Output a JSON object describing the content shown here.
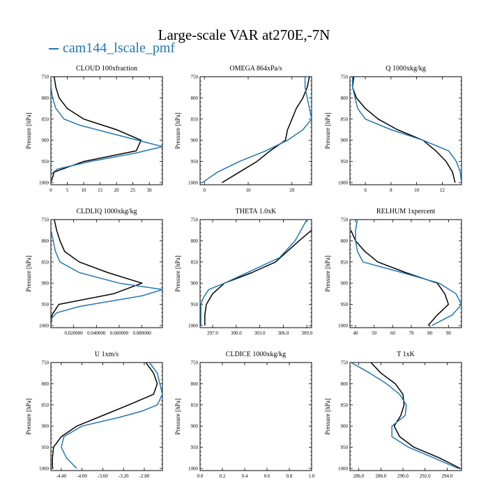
{
  "title": "Large-scale VAR at270E,-7N",
  "legend": {
    "label": "cam144_lscale_pmf",
    "color": "#1f77b4"
  },
  "chart_data": [
    {
      "type": "line",
      "title": "CLOUD  100xfraction",
      "ylabel": "Pressure [hPa]",
      "xlim": [
        0,
        34
      ],
      "ylim": [
        1005,
        750
      ],
      "xticks": [
        0,
        5,
        10,
        15,
        20,
        25,
        30
      ],
      "xticklabels": [
        "0",
        "5",
        "10",
        "15",
        "20",
        "25",
        "30"
      ],
      "yticks": [
        750,
        800,
        850,
        900,
        950,
        1000
      ],
      "yticklabels": [
        "750",
        "800",
        "850",
        "900",
        "950",
        "1000"
      ],
      "series": [
        {
          "color": "#000000",
          "points": [
            [
              1.0,
              750
            ],
            [
              1.5,
              775
            ],
            [
              2.5,
              800
            ],
            [
              5,
              825
            ],
            [
              10,
              850
            ],
            [
              20,
              875
            ],
            [
              27.5,
              900
            ],
            [
              26,
              925
            ],
            [
              10,
              950
            ],
            [
              1,
              975
            ],
            [
              0,
              1000
            ]
          ]
        },
        {
          "color": "#1f77b4",
          "points": [
            [
              0,
              750
            ],
            [
              0,
              775
            ],
            [
              0.5,
              800
            ],
            [
              1.5,
              825
            ],
            [
              4,
              850
            ],
            [
              9,
              865
            ],
            [
              19,
              885
            ],
            [
              34,
              915
            ],
            [
              26,
              930
            ],
            [
              12,
              950
            ],
            [
              2,
              968
            ],
            [
              0,
              980
            ],
            [
              0,
              1000
            ]
          ]
        }
      ]
    },
    {
      "type": "line",
      "title": "OMEGA  864xPa/s",
      "ylabel": "Pressure [hPa]",
      "xlim": [
        -1,
        24.5
      ],
      "ylim": [
        1005,
        750
      ],
      "xticks": [
        0,
        10,
        20
      ],
      "xticklabels": [
        "0",
        "10",
        "20"
      ],
      "yticks": [
        750,
        800,
        850,
        900,
        950,
        1000
      ],
      "yticklabels": [
        "750",
        "800",
        "850",
        "900",
        "950",
        "1000"
      ],
      "series": [
        {
          "color": "#000000",
          "points": [
            [
              24,
              750
            ],
            [
              23.5,
              775
            ],
            [
              22.5,
              800
            ],
            [
              21,
              825
            ],
            [
              20,
              850
            ],
            [
              19,
              875
            ],
            [
              18.5,
              900
            ],
            [
              15,
              925
            ],
            [
              12,
              950
            ],
            [
              8,
              975
            ],
            [
              4,
              1000
            ]
          ]
        },
        {
          "color": "#1f77b4",
          "points": [
            [
              23,
              750
            ],
            [
              23,
              775
            ],
            [
              23.5,
              800
            ],
            [
              24,
              825
            ],
            [
              24.5,
              850
            ],
            [
              22.5,
              875
            ],
            [
              19,
              900
            ],
            [
              14,
              925
            ],
            [
              8,
              950
            ],
            [
              3,
              975
            ],
            [
              -0.5,
              1000
            ]
          ]
        }
      ]
    },
    {
      "type": "line",
      "title": "Q  1000xkg/kg",
      "ylabel": "Pressure [hPa]",
      "xlim": [
        4.8,
        13.5
      ],
      "ylim": [
        1005,
        750
      ],
      "xticks": [
        6,
        8,
        10,
        12
      ],
      "xticklabels": [
        "6",
        "8",
        "10",
        "12"
      ],
      "yticks": [
        750,
        800,
        850,
        900,
        950,
        1000
      ],
      "yticklabels": [
        "750",
        "800",
        "850",
        "900",
        "950",
        "1000"
      ],
      "series": [
        {
          "color": "#000000",
          "points": [
            [
              5.1,
              750
            ],
            [
              5.0,
              775
            ],
            [
              5.3,
              800
            ],
            [
              6,
              825
            ],
            [
              7,
              850
            ],
            [
              8.5,
              875
            ],
            [
              10.5,
              900
            ],
            [
              11.5,
              925
            ],
            [
              12.3,
              950
            ],
            [
              12.8,
              975
            ],
            [
              13.0,
              1000
            ]
          ]
        },
        {
          "color": "#1f77b4",
          "points": [
            [
              5.0,
              750
            ],
            [
              5.0,
              775
            ],
            [
              5.2,
              800
            ],
            [
              5.4,
              825
            ],
            [
              6,
              850
            ],
            [
              8,
              875
            ],
            [
              10.5,
              900
            ],
            [
              12.5,
              925
            ],
            [
              13.1,
              950
            ],
            [
              13.4,
              975
            ],
            [
              13.5,
              1000
            ]
          ]
        }
      ]
    },
    {
      "type": "line",
      "title": "CLDLIQ  1000xkg/kg",
      "ylabel": "Pressure [hPa]",
      "xlim": [
        0,
        0.098
      ],
      "ylim": [
        1005,
        750
      ],
      "xticks": [
        0.02,
        0.04,
        0.06,
        0.08
      ],
      "xticklabels": [
        "0.020000",
        "0.040000",
        "0.060000",
        "0.080000"
      ],
      "yticks": [
        750,
        800,
        850,
        900,
        950,
        1000
      ],
      "yticklabels": [
        "750",
        "800",
        "850",
        "900",
        "950",
        "1000"
      ],
      "series": [
        {
          "color": "#000000",
          "points": [
            [
              0.003,
              750
            ],
            [
              0.005,
              775
            ],
            [
              0.008,
              800
            ],
            [
              0.012,
              825
            ],
            [
              0.025,
              850
            ],
            [
              0.05,
              875
            ],
            [
              0.08,
              900
            ],
            [
              0.055,
              925
            ],
            [
              0.007,
              950
            ],
            [
              0.001,
              975
            ],
            [
              0,
              1000
            ]
          ]
        },
        {
          "color": "#1f77b4",
          "points": [
            [
              0,
              750
            ],
            [
              0,
              775
            ],
            [
              0.002,
              800
            ],
            [
              0.004,
              825
            ],
            [
              0.008,
              850
            ],
            [
              0.025,
              875
            ],
            [
              0.06,
              900
            ],
            [
              0.098,
              915
            ],
            [
              0.08,
              930
            ],
            [
              0.025,
              955
            ],
            [
              0.005,
              970
            ],
            [
              0,
              985
            ],
            [
              0,
              1000
            ]
          ]
        }
      ]
    },
    {
      "type": "line",
      "title": "THETA  1.0xK",
      "ylabel": "Pressure [hPa]",
      "xlim": [
        295.4,
        309.6
      ],
      "ylim": [
        1005,
        750
      ],
      "xticks": [
        297,
        300,
        303,
        306,
        309
      ],
      "xticklabels": [
        "297.0",
        "300.0",
        "303.0",
        "306.0",
        "309.0"
      ],
      "yticks": [
        750,
        800,
        850,
        900,
        950,
        1000
      ],
      "yticklabels": [
        "750",
        "800",
        "850",
        "900",
        "950",
        "1000"
      ],
      "series": [
        {
          "color": "#000000",
          "points": [
            [
              309.6,
              775
            ],
            [
              308,
              800
            ],
            [
              306.5,
              825
            ],
            [
              305,
              850
            ],
            [
              302,
              875
            ],
            [
              298.5,
              900
            ],
            [
              297,
              925
            ],
            [
              296.2,
              950
            ],
            [
              296,
              975
            ],
            [
              296,
              1000
            ]
          ]
        },
        {
          "color": "#1f77b4",
          "points": [
            [
              309,
              750
            ],
            [
              307.5,
              800
            ],
            [
              305.5,
              840
            ],
            [
              302,
              870
            ],
            [
              298.5,
              900
            ],
            [
              296.5,
              915
            ],
            [
              295.8,
              935
            ],
            [
              295.5,
              950
            ],
            [
              295.5,
              1000
            ]
          ]
        }
      ]
    },
    {
      "type": "line",
      "title": "RELHUM  1xpercent",
      "ylabel": "Pressure [hPa]",
      "xlim": [
        37,
        97
      ],
      "ylim": [
        1005,
        750
      ],
      "xticks": [
        40,
        50,
        60,
        70,
        80,
        90
      ],
      "xticklabels": [
        "40",
        "50",
        "60",
        "70",
        "80",
        "90"
      ],
      "yticks": [
        750,
        800,
        850,
        900,
        950,
        1000
      ],
      "yticklabels": [
        "750",
        "800",
        "850",
        "900",
        "950",
        "1000"
      ],
      "series": [
        {
          "color": "#000000",
          "points": [
            [
              37.5,
              775
            ],
            [
              40,
              800
            ],
            [
              45,
              825
            ],
            [
              52,
              850
            ],
            [
              67,
              875
            ],
            [
              84,
              900
            ],
            [
              88,
              925
            ],
            [
              90,
              950
            ],
            [
              84,
              975
            ],
            [
              79,
              1000
            ]
          ]
        },
        {
          "color": "#1f77b4",
          "points": [
            [
              41,
              750
            ],
            [
              40,
              775
            ],
            [
              40,
              800
            ],
            [
              41,
              825
            ],
            [
              44,
              850
            ],
            [
              65,
              875
            ],
            [
              85,
              900
            ],
            [
              94,
              925
            ],
            [
              97,
              950
            ],
            [
              92,
              975
            ],
            [
              81,
              1000
            ]
          ]
        }
      ]
    },
    {
      "type": "line",
      "title": "U  1xm/s",
      "ylabel": "Pressure [hPa]",
      "xlim": [
        -4.6,
        -2.45
      ],
      "ylim": [
        1005,
        750
      ],
      "xticks": [
        -4.4,
        -4.0,
        -3.6,
        -3.2,
        -2.8
      ],
      "xticklabels": [
        "-4.40",
        "-4.00",
        "-3.60",
        "-3.20",
        "-2.80"
      ],
      "yticks": [
        750,
        800,
        850,
        900,
        950,
        1000
      ],
      "yticklabels": [
        "750",
        "800",
        "850",
        "900",
        "950",
        "1000"
      ],
      "series": [
        {
          "color": "#000000",
          "points": [
            [
              -2.77,
              750
            ],
            [
              -2.62,
              775
            ],
            [
              -2.55,
              800
            ],
            [
              -2.62,
              825
            ],
            [
              -3.1,
              850
            ],
            [
              -3.6,
              875
            ],
            [
              -4.1,
              900
            ],
            [
              -4.4,
              925
            ],
            [
              -4.55,
              950
            ],
            [
              -4.57,
              975
            ],
            [
              -4.57,
              1000
            ]
          ]
        },
        {
          "color": "#1f77b4",
          "points": [
            [
              -2.7,
              750
            ],
            [
              -2.55,
              775
            ],
            [
              -2.5,
              800
            ],
            [
              -2.45,
              825
            ],
            [
              -2.55,
              850
            ],
            [
              -2.85,
              865
            ],
            [
              -3.3,
              880
            ],
            [
              -4.0,
              900
            ],
            [
              -4.35,
              925
            ],
            [
              -4.4,
              950
            ],
            [
              -4.3,
              975
            ],
            [
              -4.1,
              1000
            ]
          ]
        }
      ]
    },
    {
      "type": "line",
      "title": "CLDICE  1000xkg/kg",
      "ylabel": "Pressure [hPa]",
      "xlim": [
        0,
        1.0
      ],
      "ylim": [
        1005,
        750
      ],
      "xticks": [
        0,
        0.2,
        0.4,
        0.6,
        0.8,
        1.0
      ],
      "xticklabels": [
        "0.0",
        "0.2",
        "0.4",
        "0.6",
        "0.8",
        "1.0"
      ],
      "yticks": [
        750,
        800,
        850,
        900,
        950,
        1000
      ],
      "yticklabels": [
        "750",
        "800",
        "850",
        "900",
        "950",
        "1000"
      ],
      "series": []
    },
    {
      "type": "line",
      "title": "T  1xK",
      "ylabel": "Pressure [hPa]",
      "xlim": [
        285.2,
        295.3
      ],
      "ylim": [
        1005,
        750
      ],
      "xticks": [
        286,
        288,
        290,
        292,
        294
      ],
      "xticklabels": [
        "286.0",
        "288.0",
        "290.0",
        "292.0",
        "294.0"
      ],
      "yticks": [
        750,
        800,
        850,
        900,
        950,
        1000
      ],
      "yticklabels": [
        "750",
        "800",
        "850",
        "900",
        "950",
        "1000"
      ],
      "series": [
        {
          "color": "#000000",
          "points": [
            [
              287.1,
              750
            ],
            [
              288,
              775
            ],
            [
              289.3,
              800
            ],
            [
              290,
              825
            ],
            [
              290.1,
              850
            ],
            [
              289.8,
              875
            ],
            [
              289.2,
              900
            ],
            [
              289.7,
              925
            ],
            [
              291,
              950
            ],
            [
              293.3,
              975
            ],
            [
              295.2,
              1000
            ]
          ]
        },
        {
          "color": "#1f77b4",
          "points": [
            [
              285.3,
              750
            ],
            [
              287,
              775
            ],
            [
              288.5,
              800
            ],
            [
              289.7,
              825
            ],
            [
              290.3,
              850
            ],
            [
              290.2,
              875
            ],
            [
              289,
              900
            ],
            [
              289,
              925
            ],
            [
              290.5,
              950
            ],
            [
              292.8,
              975
            ],
            [
              295,
              1000
            ]
          ]
        }
      ]
    }
  ]
}
